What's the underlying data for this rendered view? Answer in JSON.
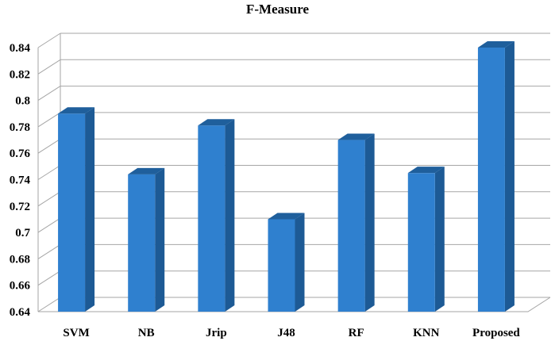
{
  "chart_data": {
    "type": "bar",
    "title": "F-Measure",
    "xlabel": "",
    "ylabel": "",
    "categories": [
      "SVM",
      "NB",
      "Jrip",
      "J48",
      "RF",
      "KNN",
      "Proposed"
    ],
    "values": [
      0.79,
      0.744,
      0.781,
      0.71,
      0.77,
      0.745,
      0.84
    ],
    "ylim": [
      0.64,
      0.84
    ],
    "yticks": [
      "0.64",
      "0.66",
      "0.68",
      "0.7",
      "0.72",
      "0.74",
      "0.76",
      "0.78",
      "0.8",
      "0.82",
      "0.84"
    ],
    "grid": true,
    "three_d": true,
    "colors": {
      "bar_front": "#2f80cf",
      "bar_side": "#1d5a95",
      "bar_top": "#1f5f9c",
      "grid": "#a6a6a6"
    }
  }
}
